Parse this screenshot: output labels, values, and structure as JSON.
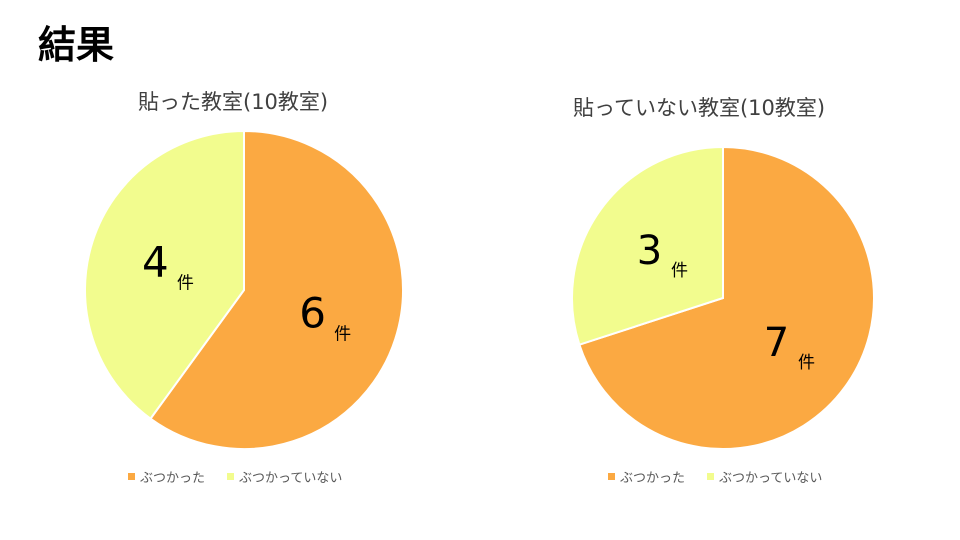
{
  "slide_title": "結果",
  "colors": {
    "hit": "#FBA942",
    "not_hit": "#F2FC8E",
    "border": "#ffffff"
  },
  "chart_data": [
    {
      "type": "pie",
      "title": "貼った教室(10教室)",
      "categories": [
        "ぶつかった",
        "ぶつかっていない"
      ],
      "values": [
        6,
        4
      ],
      "data_labels": [
        "6",
        "4"
      ],
      "unit": "件",
      "legend": "bottom"
    },
    {
      "type": "pie",
      "title": "貼っていない教室(10教室)",
      "categories": [
        "ぶつかった",
        "ぶつかっていない"
      ],
      "values": [
        7,
        3
      ],
      "data_labels": [
        "7",
        "3"
      ],
      "unit": "件",
      "legend": "bottom"
    }
  ]
}
